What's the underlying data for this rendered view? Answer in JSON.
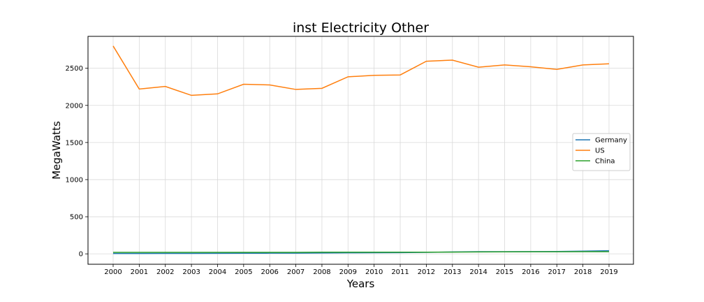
{
  "chart_data": {
    "type": "line",
    "title": "inst Electricity Other",
    "xlabel": "Years",
    "ylabel": "MegaWatts",
    "x": [
      "2000",
      "2001",
      "2002",
      "2003",
      "2004",
      "2005",
      "2006",
      "2007",
      "2008",
      "2009",
      "2010",
      "2011",
      "2012",
      "2013",
      "2014",
      "2015",
      "2016",
      "2017",
      "2018",
      "2019"
    ],
    "yticks": [
      0,
      500,
      1000,
      1500,
      2000,
      2500
    ],
    "ylim": [
      -140,
      2930
    ],
    "grid": true,
    "legend_position": "center-right",
    "series": [
      {
        "name": "Germany",
        "color": "#1f77b4",
        "values": [
          5,
          5,
          6,
          6,
          7,
          8,
          9,
          10,
          12,
          14,
          15,
          17,
          20,
          26,
          30,
          30,
          31,
          32,
          36,
          42
        ]
      },
      {
        "name": "US",
        "color": "#ff7f0e",
        "values": [
          2800,
          2220,
          2255,
          2135,
          2155,
          2285,
          2275,
          2215,
          2230,
          2385,
          2405,
          2410,
          2595,
          2610,
          2515,
          2545,
          2520,
          2485,
          2545,
          2560
        ]
      },
      {
        "name": "China",
        "color": "#2ca02c",
        "values": [
          20,
          20,
          20,
          20,
          20,
          20,
          20,
          20,
          22,
          22,
          22,
          22,
          23,
          24,
          26,
          27,
          28,
          28,
          29,
          30
        ]
      }
    ]
  }
}
